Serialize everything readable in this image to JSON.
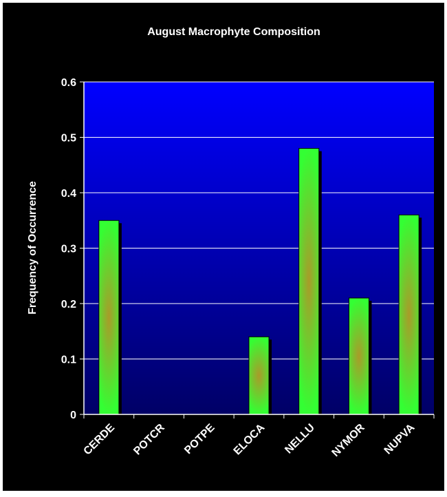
{
  "chart_data": {
    "type": "bar",
    "title": "August Macrophyte Composition",
    "xlabel": "",
    "ylabel": "Frequency of Occurrence",
    "categories": [
      "CERDE",
      "POTCR",
      "POTPE",
      "ELOCA",
      "NELLU",
      "NYMOR",
      "NUPVA"
    ],
    "values": [
      0.35,
      0,
      0,
      0.14,
      0.48,
      0.21,
      0.36
    ],
    "ylim": [
      0,
      0.6
    ],
    "yticks": [
      "0",
      "0.1",
      "0.2",
      "0.3",
      "0.4",
      "0.5",
      "0.6"
    ],
    "grid": true,
    "legend": "none"
  },
  "colors": {
    "page_background": "#000000",
    "plot_gradient_top": "#0000ff",
    "plot_gradient_bottom": "#000066",
    "bar_edge": "#33ff33",
    "bar_center": "#aa9a2a",
    "bar_shadow": "#000000",
    "text": "#ffffff",
    "gridline": "#ffffff"
  }
}
